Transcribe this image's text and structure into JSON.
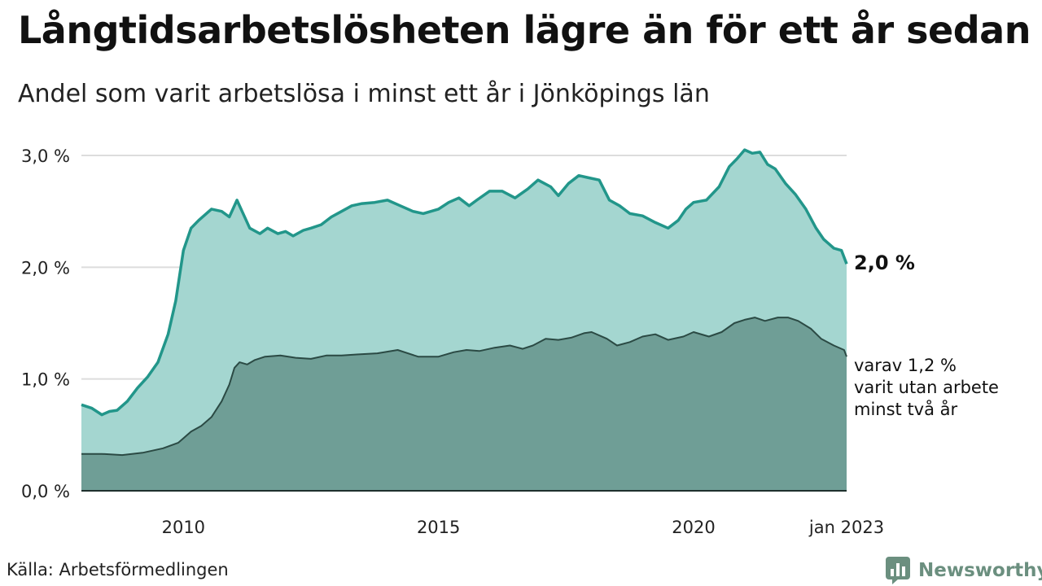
{
  "title": "Långtidsarbetslösheten lägre än för ett år sedan",
  "subtitle": "Andel som varit arbetslösa i minst ett år i Jönköpings län",
  "source": "Källa: Arbetsförmedlingen",
  "brand": {
    "name": "Newsworthy",
    "icon": "bar-chart-speech-bubble-icon",
    "color": "#6b8f7f"
  },
  "chart_data": {
    "type": "area",
    "unit": "%",
    "ylim": [
      0,
      3.0
    ],
    "xlim": [
      2008.0,
      2023.0
    ],
    "y_ticks": [
      {
        "value": 0,
        "label": "0,0 %"
      },
      {
        "value": 1,
        "label": "1,0 %"
      },
      {
        "value": 2,
        "label": "2,0 %"
      },
      {
        "value": 3,
        "label": "3,0 %"
      }
    ],
    "x_ticks": [
      {
        "value": 2010,
        "label": "2010"
      },
      {
        "value": 2015,
        "label": "2015"
      },
      {
        "value": 2020,
        "label": "2020"
      },
      {
        "value": 2023,
        "label": "jan 2023"
      }
    ],
    "grid": true,
    "colors": {
      "one_year_fill": "#a4d6d0",
      "one_year_line": "#22968a",
      "two_year_fill": "#6f9e96",
      "two_year_line": "#2b4a44",
      "grid": "#dddddd"
    },
    "end_labels": {
      "one_year": "2,0 %",
      "two_year": [
        "varav 1,2 %",
        "varit utan arbete",
        "minst två år"
      ]
    },
    "series": [
      {
        "key": "one_year",
        "x": [
          2008.0,
          2008.2,
          2008.4,
          2008.55,
          2008.7,
          2008.9,
          2009.1,
          2009.3,
          2009.5,
          2009.7,
          2009.85,
          2010.0,
          2010.15,
          2010.3,
          2010.45,
          2010.55,
          2010.75,
          2010.9,
          2011.05,
          2011.15,
          2011.3,
          2011.5,
          2011.65,
          2011.85,
          2012.0,
          2012.15,
          2012.35,
          2012.5,
          2012.7,
          2012.9,
          2013.1,
          2013.3,
          2013.5,
          2013.75,
          2014.0,
          2014.25,
          2014.5,
          2014.7,
          2015.0,
          2015.2,
          2015.4,
          2015.6,
          2015.75,
          2016.0,
          2016.25,
          2016.5,
          2016.75,
          2016.95,
          2017.2,
          2017.35,
          2017.55,
          2017.75,
          2017.95,
          2018.15,
          2018.35,
          2018.55,
          2018.75,
          2019.0,
          2019.25,
          2019.5,
          2019.7,
          2019.85,
          2020.0,
          2020.25,
          2020.5,
          2020.7,
          2020.85,
          2021.0,
          2021.15,
          2021.3,
          2021.45,
          2021.6,
          2021.8,
          2022.0,
          2022.2,
          2022.4,
          2022.55,
          2022.75,
          2022.9,
          2023.0
        ],
        "values": [
          0.77,
          0.74,
          0.68,
          0.71,
          0.72,
          0.8,
          0.92,
          1.02,
          1.15,
          1.4,
          1.7,
          2.15,
          2.35,
          2.42,
          2.48,
          2.52,
          2.5,
          2.45,
          2.6,
          2.5,
          2.35,
          2.3,
          2.35,
          2.3,
          2.32,
          2.28,
          2.33,
          2.35,
          2.38,
          2.45,
          2.5,
          2.55,
          2.57,
          2.58,
          2.6,
          2.55,
          2.5,
          2.48,
          2.52,
          2.58,
          2.62,
          2.55,
          2.6,
          2.68,
          2.68,
          2.62,
          2.7,
          2.78,
          2.72,
          2.64,
          2.75,
          2.82,
          2.8,
          2.78,
          2.6,
          2.55,
          2.48,
          2.46,
          2.4,
          2.35,
          2.42,
          2.52,
          2.58,
          2.6,
          2.72,
          2.9,
          2.97,
          3.05,
          3.02,
          3.03,
          2.92,
          2.88,
          2.75,
          2.65,
          2.52,
          2.35,
          2.25,
          2.17,
          2.15,
          2.03
        ]
      },
      {
        "key": "two_year",
        "x": [
          2008.0,
          2008.4,
          2008.8,
          2009.2,
          2009.6,
          2009.9,
          2010.0,
          2010.15,
          2010.35,
          2010.55,
          2010.75,
          2010.9,
          2011.0,
          2011.1,
          2011.25,
          2011.4,
          2011.6,
          2011.9,
          2012.2,
          2012.5,
          2012.8,
          2013.1,
          2013.4,
          2013.8,
          2014.2,
          2014.6,
          2015.0,
          2015.3,
          2015.55,
          2015.8,
          2016.1,
          2016.4,
          2016.65,
          2016.85,
          2017.1,
          2017.35,
          2017.6,
          2017.85,
          2018.0,
          2018.3,
          2018.5,
          2018.75,
          2019.0,
          2019.25,
          2019.5,
          2019.8,
          2020.0,
          2020.3,
          2020.55,
          2020.8,
          2021.0,
          2021.2,
          2021.4,
          2021.65,
          2021.85,
          2022.05,
          2022.3,
          2022.5,
          2022.75,
          2022.95,
          2023.0
        ],
        "values": [
          0.33,
          0.33,
          0.32,
          0.34,
          0.38,
          0.43,
          0.47,
          0.53,
          0.58,
          0.66,
          0.8,
          0.95,
          1.1,
          1.15,
          1.13,
          1.17,
          1.2,
          1.21,
          1.19,
          1.18,
          1.21,
          1.21,
          1.22,
          1.23,
          1.26,
          1.2,
          1.2,
          1.24,
          1.26,
          1.25,
          1.28,
          1.3,
          1.27,
          1.3,
          1.36,
          1.35,
          1.37,
          1.41,
          1.42,
          1.36,
          1.3,
          1.33,
          1.38,
          1.4,
          1.35,
          1.38,
          1.42,
          1.38,
          1.42,
          1.5,
          1.53,
          1.55,
          1.52,
          1.55,
          1.55,
          1.52,
          1.45,
          1.36,
          1.3,
          1.26,
          1.2
        ]
      }
    ]
  }
}
